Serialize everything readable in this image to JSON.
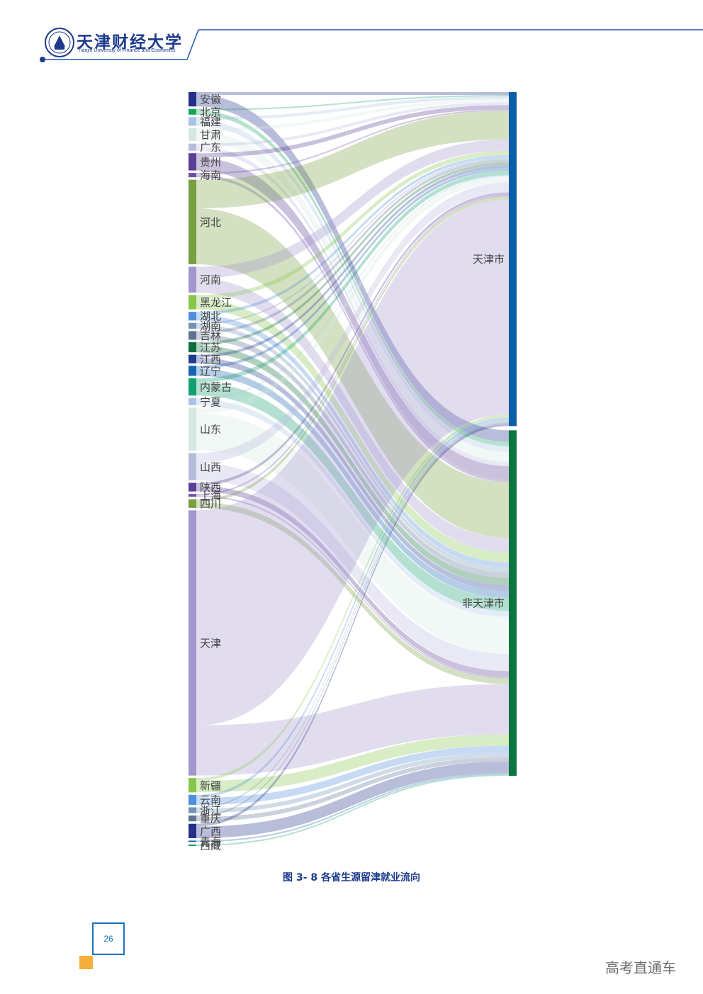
{
  "header": {
    "university_cn": "天津财经大学",
    "university_en": "Tianjin University of Finance and Economics",
    "brand_color": "#1d3a8c",
    "line_color": "#1e56b0"
  },
  "caption": "图 3- 8 各省生源留津就业流向",
  "page_number": "26",
  "watermark": "高考直通车",
  "chart_data": {
    "type": "sankey",
    "title": "图 3- 8 各省生源留津就业流向",
    "targets": [
      {
        "name": "天津市",
        "color": "#0a5ea8"
      },
      {
        "name": "非天津市",
        "color": "#0b7440"
      }
    ],
    "sources": [
      {
        "name": "安徽",
        "color": "#23318b",
        "tianjin": 2,
        "other": 8
      },
      {
        "name": "北京",
        "color": "#16a55f",
        "tianjin": 1,
        "other": 3
      },
      {
        "name": "福建",
        "color": "#a9c4e6",
        "tianjin": 2,
        "other": 4
      },
      {
        "name": "甘肃",
        "color": "#d4e8e0",
        "tianjin": 2,
        "other": 7
      },
      {
        "name": "广东",
        "color": "#b8bcdc",
        "tianjin": 2,
        "other": 3
      },
      {
        "name": "贵州",
        "color": "#5b3e96",
        "tianjin": 3,
        "other": 9
      },
      {
        "name": "海南",
        "color": "#6e4fa8",
        "tianjin": 1,
        "other": 2
      },
      {
        "name": "河北",
        "color": "#77a040",
        "tianjin": 20,
        "other": 39
      },
      {
        "name": "河南",
        "color": "#a296cd",
        "tianjin": 8,
        "other": 10
      },
      {
        "name": "黑龙江",
        "color": "#86c74a",
        "tianjin": 3,
        "other": 7
      },
      {
        "name": "湖北",
        "color": "#4f8fdb",
        "tianjin": 2,
        "other": 4
      },
      {
        "name": "湖南",
        "color": "#6e93b5",
        "tianjin": 1,
        "other": 3
      },
      {
        "name": "吉林",
        "color": "#5e7292",
        "tianjin": 2,
        "other": 4
      },
      {
        "name": "江苏",
        "color": "#0d6e3c",
        "tianjin": 2,
        "other": 5
      },
      {
        "name": "江西",
        "color": "#213a8e",
        "tianjin": 2,
        "other": 4
      },
      {
        "name": "辽宁",
        "color": "#1565b2",
        "tianjin": 2,
        "other": 5
      },
      {
        "name": "内蒙古",
        "color": "#12a071",
        "tianjin": 3,
        "other": 9
      },
      {
        "name": "宁夏",
        "color": "#a9c4e6",
        "tianjin": 1,
        "other": 4
      },
      {
        "name": "山东",
        "color": "#d7e8e1",
        "tianjin": 4,
        "other": 26
      },
      {
        "name": "山西",
        "color": "#b8bcdc",
        "tianjin": 7,
        "other": 12
      },
      {
        "name": "陕西",
        "color": "#5b3e96",
        "tianjin": 2,
        "other": 4
      },
      {
        "name": "上海",
        "color": "#6e4fa8",
        "tianjin": 1,
        "other": 1
      },
      {
        "name": "四川",
        "color": "#77a040",
        "tianjin": 2,
        "other": 4
      },
      {
        "name": "天津",
        "color": "#a296cd",
        "tianjin": 150,
        "other": 35
      },
      {
        "name": "新疆",
        "color": "#86c74a",
        "tianjin": 2,
        "other": 8
      },
      {
        "name": "云南",
        "color": "#4f8fdb",
        "tianjin": 2,
        "other": 5
      },
      {
        "name": "浙江",
        "color": "#6e93b5",
        "tianjin": 1,
        "other": 3
      },
      {
        "name": "重庆",
        "color": "#5e7292",
        "tianjin": 1,
        "other": 3
      },
      {
        "name": "广西",
        "color": "#23318b",
        "tianjin": 2,
        "other": 8
      },
      {
        "name": "青海",
        "color": "#1565b2",
        "tianjin": 0,
        "other": 1
      },
      {
        "name": "西藏",
        "color": "#16a55f",
        "tianjin": 0,
        "other": 1
      }
    ]
  }
}
